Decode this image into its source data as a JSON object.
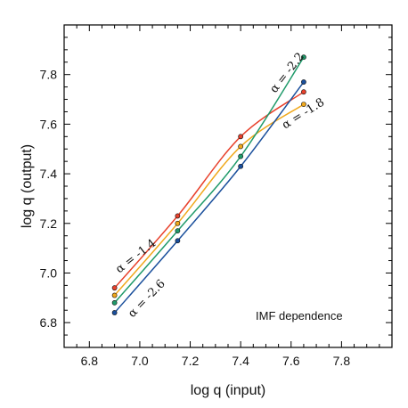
{
  "chart_data": {
    "type": "line",
    "title": "",
    "xlabel": "log q (input)",
    "ylabel": "log q  (output)",
    "xlim": [
      6.7,
      8.0
    ],
    "ylim": [
      6.7,
      8.0
    ],
    "xticks": [
      6.8,
      7.0,
      7.2,
      7.4,
      7.6,
      7.8
    ],
    "yticks": [
      6.8,
      7.0,
      7.2,
      7.4,
      7.6,
      7.8
    ],
    "x_tick_labels": [
      "6.8",
      "7.0",
      "7.2",
      "7.4",
      "7.6",
      "7.8"
    ],
    "y_tick_labels": [
      "6.8",
      "7.0",
      "7.2",
      "7.4",
      "7.6",
      "7.8"
    ],
    "grid": false,
    "x": [
      6.9,
      7.15,
      7.4,
      7.65
    ],
    "series": [
      {
        "name": "α = -1.4",
        "values": [
          6.94,
          7.23,
          7.55,
          7.73
        ],
        "color": "#e8412c"
      },
      {
        "name": "α = -1.8",
        "values": [
          6.91,
          7.2,
          7.51,
          7.68
        ],
        "color": "#f0a81c"
      },
      {
        "name": "α = -2.2",
        "values": [
          6.88,
          7.17,
          7.47,
          7.87
        ],
        "color": "#1f9a6a"
      },
      {
        "name": "α = -2.6",
        "values": [
          6.84,
          7.13,
          7.43,
          7.77
        ],
        "color": "#1a4f9c"
      }
    ],
    "annotation": "IMF dependence"
  }
}
